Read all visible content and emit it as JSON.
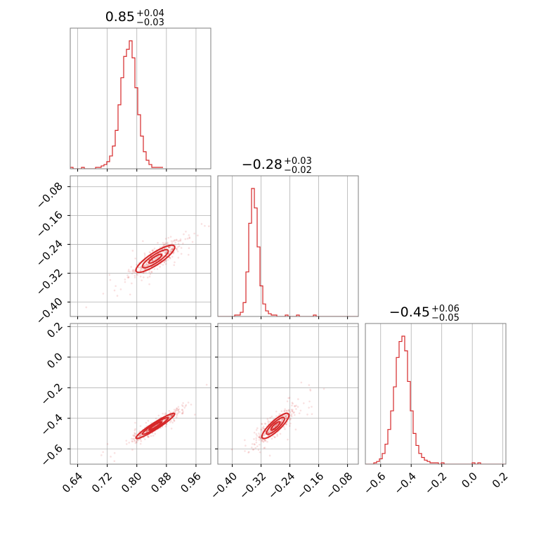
{
  "chart_data": {
    "type": "corner",
    "color": "#d62728",
    "parameters": [
      {
        "label": "",
        "title": {
          "median": "0.85",
          "plus": "+0.04",
          "minus": "−0.03"
        },
        "range": [
          0.62,
          1.0
        ],
        "ticks": [
          {
            "v": 0.64,
            "t": "0.64"
          },
          {
            "v": 0.72,
            "t": "0.72"
          },
          {
            "v": 0.8,
            "t": "0.80"
          },
          {
            "v": 0.88,
            "t": "0.88"
          },
          {
            "v": 0.96,
            "t": "0.96"
          }
        ]
      },
      {
        "label": "",
        "title": {
          "median": "−0.28",
          "plus": "+0.03",
          "minus": "−0.02"
        },
        "range": [
          -0.44,
          -0.05
        ],
        "ticks": [
          {
            "v": -0.4,
            "t": "−0.40"
          },
          {
            "v": -0.32,
            "t": "−0.32"
          },
          {
            "v": -0.24,
            "t": "−0.24"
          },
          {
            "v": -0.16,
            "t": "−0.16"
          },
          {
            "v": -0.08,
            "t": "−0.08"
          }
        ]
      },
      {
        "label": "",
        "title": {
          "median": "−0.45",
          "plus": "+0.06",
          "minus": "−0.05"
        },
        "range": [
          -0.7,
          0.22
        ],
        "ticks": [
          {
            "v": -0.6,
            "t": "−0.6"
          },
          {
            "v": -0.4,
            "t": "−0.4"
          },
          {
            "v": -0.2,
            "t": "−0.2"
          },
          {
            "v": 0.0,
            "t": "0.0"
          },
          {
            "v": 0.2,
            "t": "0.2"
          }
        ]
      }
    ],
    "histograms": [
      {
        "param": 0,
        "edges_start": 0.62,
        "bin_width": 0.0076,
        "counts": [
          1,
          0,
          0,
          0,
          1,
          0,
          0,
          0,
          0,
          1,
          1,
          2,
          3,
          5,
          9,
          16,
          27,
          45,
          64,
          79,
          84,
          90,
          78,
          57,
          38,
          23,
          12,
          6,
          3,
          1,
          1,
          1,
          1
        ]
      },
      {
        "param": 1,
        "edges_start": -0.44,
        "bin_width": 0.0078,
        "counts": [
          0,
          0,
          0,
          0,
          0,
          0,
          1,
          1,
          3,
          10,
          32,
          67,
          92,
          78,
          50,
          22,
          9,
          4,
          2,
          1,
          1,
          0,
          0,
          0,
          1,
          0,
          0,
          0,
          1,
          0,
          0,
          0,
          0,
          0,
          1,
          0,
          0,
          0,
          0,
          0,
          0,
          0,
          0,
          0,
          0,
          0,
          0,
          0,
          0,
          0
        ]
      },
      {
        "param": 2,
        "edges_start": -0.7,
        "bin_width": 0.0184,
        "counts": [
          0,
          0,
          0,
          1,
          2,
          4,
          8,
          15,
          26,
          40,
          58,
          80,
          92,
          96,
          85,
          62,
          40,
          23,
          14,
          8,
          5,
          3,
          2,
          1,
          1,
          1,
          0,
          1,
          0,
          0,
          0,
          0,
          0,
          0,
          0,
          0,
          0,
          0,
          1,
          0,
          1,
          0,
          0,
          0,
          0,
          0,
          0,
          0,
          0,
          0
        ]
      }
    ],
    "pairs": [
      {
        "x": 0,
        "y": 1,
        "center": [
          0.85,
          -0.28
        ],
        "sd": [
          0.035,
          0.025
        ],
        "rho": 0.85
      },
      {
        "x": 0,
        "y": 2,
        "center": [
          0.85,
          -0.45
        ],
        "sd": [
          0.035,
          0.055
        ],
        "rho": 0.95
      },
      {
        "x": 1,
        "y": 2,
        "center": [
          -0.28,
          -0.45
        ],
        "sd": [
          0.025,
          0.055
        ],
        "rho": 0.85
      }
    ],
    "contour_levels_sigma": [
      0.5,
      1.0,
      1.5
    ],
    "grid": true
  }
}
